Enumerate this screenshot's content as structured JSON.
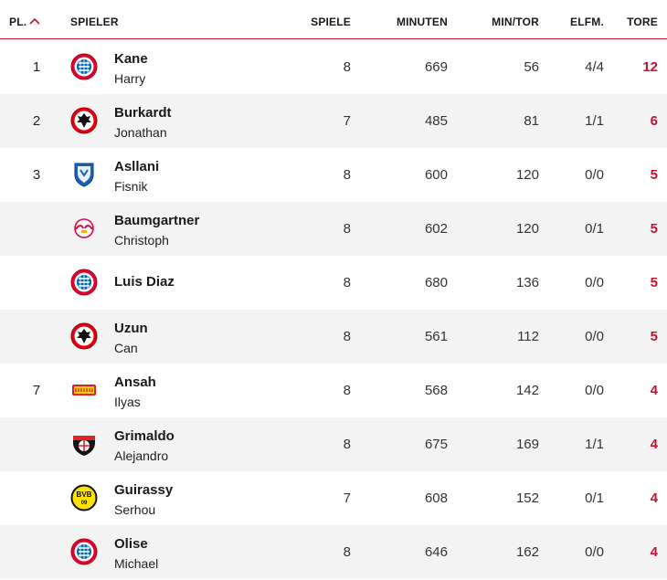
{
  "header": {
    "pl": "PL.",
    "spieler": "SPIELER",
    "spiele": "SPIELE",
    "minuten": "MINUTEN",
    "min_tor": "MIN/TOR",
    "elfm": "ELFM.",
    "tore": "TORE",
    "sort_icon": "chevron-up-icon"
  },
  "colors": {
    "accent": "#c8102e",
    "row_alt": "#f3f3f3"
  },
  "rows": [
    {
      "rank": "1",
      "last": "Kane",
      "first": "Harry",
      "club_icon": "bayern-logo-icon",
      "spiele": "8",
      "minuten": "669",
      "min_tor": "56",
      "elfm": "4/4",
      "tore": "12"
    },
    {
      "rank": "2",
      "last": "Burkardt",
      "first": "Jonathan",
      "club_icon": "frankfurt-logo-icon",
      "spiele": "7",
      "minuten": "485",
      "min_tor": "81",
      "elfm": "1/1",
      "tore": "6"
    },
    {
      "rank": "3",
      "last": "Asllani",
      "first": "Fisnik",
      "club_icon": "hoffenheim-logo-icon",
      "spiele": "8",
      "minuten": "600",
      "min_tor": "120",
      "elfm": "0/0",
      "tore": "5"
    },
    {
      "rank": "",
      "last": "Baumgartner",
      "first": "Christoph",
      "club_icon": "leipzig-logo-icon",
      "spiele": "8",
      "minuten": "602",
      "min_tor": "120",
      "elfm": "0/1",
      "tore": "5"
    },
    {
      "rank": "",
      "last": "Luis Diaz",
      "first": "",
      "club_icon": "bayern-logo-icon",
      "spiele": "8",
      "minuten": "680",
      "min_tor": "136",
      "elfm": "0/0",
      "tore": "5"
    },
    {
      "rank": "",
      "last": "Uzun",
      "first": "Can",
      "club_icon": "frankfurt-logo-icon",
      "spiele": "8",
      "minuten": "561",
      "min_tor": "112",
      "elfm": "0/0",
      "tore": "5"
    },
    {
      "rank": "7",
      "last": "Ansah",
      "first": "Ilyas",
      "club_icon": "union-berlin-logo-icon",
      "spiele": "8",
      "minuten": "568",
      "min_tor": "142",
      "elfm": "0/0",
      "tore": "4"
    },
    {
      "rank": "",
      "last": "Grimaldo",
      "first": "Alejandro",
      "club_icon": "leverkusen-logo-icon",
      "spiele": "8",
      "minuten": "675",
      "min_tor": "169",
      "elfm": "1/1",
      "tore": "4"
    },
    {
      "rank": "",
      "last": "Guirassy",
      "first": "Serhou",
      "club_icon": "dortmund-logo-icon",
      "spiele": "7",
      "minuten": "608",
      "min_tor": "152",
      "elfm": "0/1",
      "tore": "4"
    },
    {
      "rank": "",
      "last": "Olise",
      "first": "Michael",
      "club_icon": "bayern-logo-icon",
      "spiele": "8",
      "minuten": "646",
      "min_tor": "162",
      "elfm": "0/0",
      "tore": "4"
    }
  ]
}
